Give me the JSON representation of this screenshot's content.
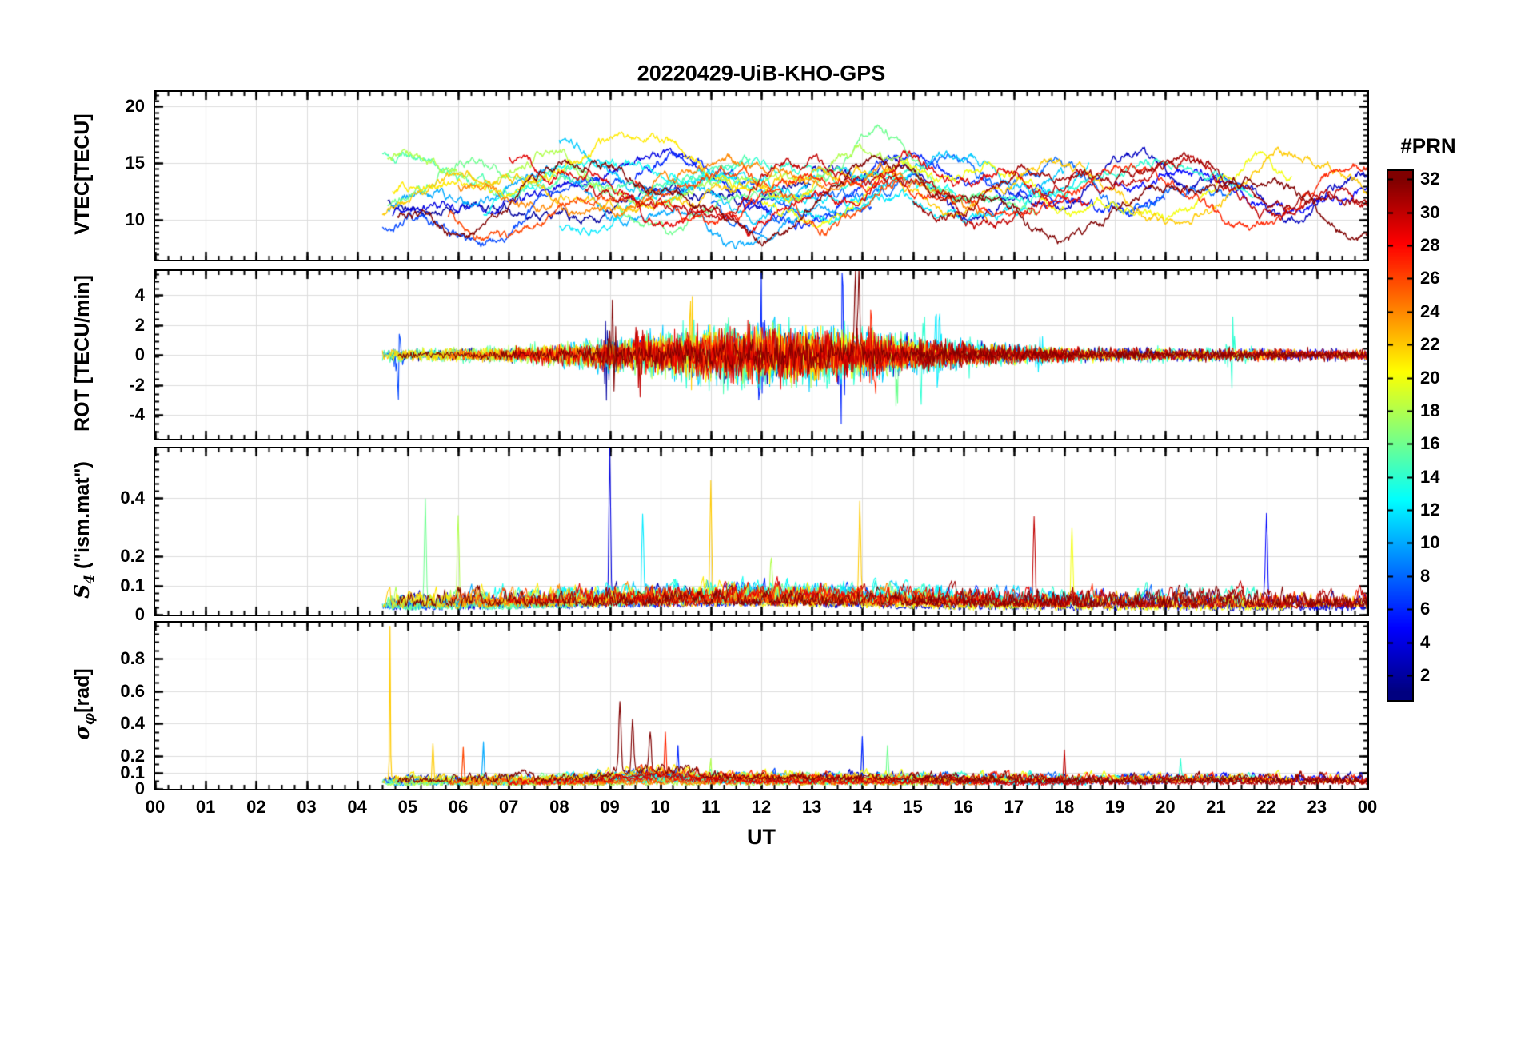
{
  "chart_data": {
    "type": "line",
    "title": "20220429-UiB-KHO-GPS",
    "xlabel": "UT",
    "grid": true,
    "x_axis": {
      "xlim": [
        0,
        24
      ],
      "major_step": 1,
      "minor_step": 0.25,
      "tick_labels": [
        "00",
        "01",
        "02",
        "03",
        "04",
        "05",
        "06",
        "07",
        "08",
        "09",
        "10",
        "11",
        "12",
        "13",
        "14",
        "15",
        "16",
        "17",
        "18",
        "19",
        "20",
        "21",
        "22",
        "23",
        "00"
      ]
    },
    "panels": [
      {
        "name": "vtec",
        "ylabel_pre": "VTEC[TECU]",
        "ylabel_sub": "",
        "ylabel_post": "",
        "ylim": [
          6.5,
          21.3
        ],
        "yticks": [
          10,
          15,
          20
        ],
        "ytick_labels": [
          "10",
          "15",
          "20"
        ],
        "minor_step": 0.5
      },
      {
        "name": "rot",
        "ylabel_pre": "ROT [TECU/min]",
        "ylabel_sub": "",
        "ylabel_post": "",
        "ylim": [
          -5.6,
          5.6
        ],
        "yticks": [
          -4,
          -2,
          0,
          2,
          4
        ],
        "ytick_labels": [
          "-4",
          "-2",
          "0",
          "2",
          "4"
        ],
        "minor_step": 0.5
      },
      {
        "name": "s4",
        "ylabel_pre": "S",
        "ylabel_sub": "4",
        "ylabel_post": " (\"ism.mat\")",
        "ylim": [
          0,
          0.57
        ],
        "yticks": [
          0,
          0.1,
          0.2,
          0.4
        ],
        "ytick_labels": [
          "0",
          "0.1",
          "0.2",
          "0.4"
        ],
        "minor_step": 0.025
      },
      {
        "name": "sigma_phi",
        "ylabel_pre": "σ",
        "ylabel_sub": "φ",
        "ylabel_post": "[rad]",
        "ylim": [
          0,
          1.02
        ],
        "yticks": [
          0,
          0.1,
          0.2,
          0.4,
          0.6,
          0.8
        ],
        "ytick_labels": [
          "0",
          "0.1",
          "0.2",
          "0.4",
          "0.6",
          "0.8"
        ],
        "minor_step": 0.05
      }
    ],
    "colorbar": {
      "title": "#PRN",
      "colormap": "jet",
      "vmin": 0.5,
      "vmax": 32.5,
      "ticks": [
        2,
        4,
        6,
        8,
        10,
        12,
        14,
        16,
        18,
        20,
        22,
        24,
        26,
        28,
        30,
        32
      ]
    },
    "series": [
      {
        "prn": 2,
        "window": [
          4.6,
          13.0
        ],
        "vtec_base": 11.2,
        "seed": 11
      },
      {
        "prn": 3,
        "window": [
          13.0,
          24.0
        ],
        "vtec_base": 12.8,
        "seed": 23
      },
      {
        "prn": 4,
        "window": [
          4.7,
          12.2
        ],
        "vtec_base": 12.2,
        "seed": 37
      },
      {
        "prn": 5,
        "window": [
          19.0,
          24.0
        ],
        "vtec_base": 13.0,
        "seed": 41
      },
      {
        "prn": 6,
        "window": [
          9.5,
          20.0
        ],
        "vtec_base": 12.3,
        "seed": 53
      },
      {
        "prn": 7,
        "window": [
          4.5,
          14.2
        ],
        "vtec_base": 10.8,
        "seed": 67
      },
      {
        "prn": 8,
        "window": [
          11.0,
          21.5
        ],
        "vtec_base": 12.4,
        "seed": 71
      },
      {
        "prn": 10,
        "window": [
          4.6,
          13.5
        ],
        "vtec_base": 10.6,
        "seed": 83
      },
      {
        "prn": 11,
        "window": [
          8.0,
          18.0
        ],
        "vtec_base": 13.2,
        "seed": 97
      },
      {
        "prn": 12,
        "window": [
          8.0,
          18.5
        ],
        "vtec_base": 12.0,
        "seed": 103
      },
      {
        "prn": 13,
        "window": [
          6.5,
          16.0
        ],
        "vtec_base": 12.1,
        "seed": 113
      },
      {
        "prn": 14,
        "window": [
          10.0,
          21.8
        ],
        "vtec_base": 12.6,
        "seed": 127
      },
      {
        "prn": 15,
        "window": [
          4.5,
          11.8
        ],
        "vtec_base": 13.4,
        "seed": 131
      },
      {
        "prn": 16,
        "window": [
          4.6,
          17.5
        ],
        "vtec_base": 12.0,
        "seed": 139
      },
      {
        "prn": 18,
        "window": [
          4.6,
          15.5
        ],
        "vtec_base": 13.0,
        "seed": 149
      },
      {
        "prn": 20,
        "window": [
          12.0,
          22.5
        ],
        "vtec_base": 12.4,
        "seed": 151
      },
      {
        "prn": 21,
        "window": [
          4.7,
          13.2
        ],
        "vtec_base": 14.0,
        "seed": 163
      },
      {
        "prn": 22,
        "window": [
          4.5,
          24.0
        ],
        "vtec_base": 12.2,
        "seed": 173
      },
      {
        "prn": 24,
        "window": [
          6.0,
          16.5
        ],
        "vtec_base": 12.6,
        "seed": 179
      },
      {
        "prn": 26,
        "window": [
          5.8,
          14.8
        ],
        "vtec_base": 11.4,
        "seed": 181
      },
      {
        "prn": 27,
        "window": [
          9.5,
          24.0
        ],
        "vtec_base": 12.1,
        "seed": 191
      },
      {
        "prn": 29,
        "window": [
          7.0,
          18.5
        ],
        "vtec_base": 12.0,
        "seed": 193
      },
      {
        "prn": 30,
        "window": [
          8.5,
          24.0
        ],
        "vtec_base": 12.5,
        "seed": 197
      },
      {
        "prn": 31,
        "window": [
          15.0,
          24.0
        ],
        "vtec_base": 12.6,
        "seed": 199
      },
      {
        "prn": 32,
        "window": [
          4.8,
          24.0
        ],
        "vtec_base": 11.2,
        "seed": 211
      }
    ],
    "vtec_events": [
      {
        "t": 8.0,
        "w": 0.9
      },
      {
        "t": 9.3,
        "w": 1.0
      },
      {
        "t": 14.6,
        "w": 0.9
      },
      {
        "t": 21.6,
        "w": 1.2
      }
    ],
    "rot_bursts": [
      {
        "t": 4.8,
        "amp": 3.6,
        "prn": 7
      },
      {
        "t": 8.95,
        "amp": 4.2,
        "prn": 2
      },
      {
        "t": 9.05,
        "amp": 4.5,
        "prn": 32
      },
      {
        "t": 9.6,
        "amp": 4.0,
        "prn": 30
      },
      {
        "t": 10.6,
        "amp": 4.4,
        "prn": 22
      },
      {
        "t": 10.9,
        "amp": 3.8,
        "prn": 21
      },
      {
        "t": 12.0,
        "amp": 4.0,
        "prn": 6
      },
      {
        "t": 13.6,
        "amp": 5.0,
        "prn": 6
      },
      {
        "t": 13.9,
        "amp": 7.0,
        "prn": 32
      },
      {
        "t": 14.2,
        "amp": 5.5,
        "prn": 27
      },
      {
        "t": 14.7,
        "amp": 4.2,
        "prn": 16
      },
      {
        "t": 15.2,
        "amp": 4.3,
        "prn": 14
      },
      {
        "t": 15.5,
        "amp": 4.0,
        "prn": 12
      },
      {
        "t": 16.1,
        "amp": 3.5,
        "prn": 14
      },
      {
        "t": 17.5,
        "amp": 3.0,
        "prn": 12
      },
      {
        "t": 21.3,
        "amp": 2.8,
        "prn": 14
      }
    ],
    "s4_spikes": [
      {
        "t": 5.35,
        "amp": 0.37,
        "prn": 16
      },
      {
        "t": 6.0,
        "amp": 0.31,
        "prn": 18
      },
      {
        "t": 9.0,
        "amp": 0.52,
        "prn": 4
      },
      {
        "t": 9.65,
        "amp": 0.28,
        "prn": 12
      },
      {
        "t": 11.0,
        "amp": 0.4,
        "prn": 22
      },
      {
        "t": 12.2,
        "amp": 0.12,
        "prn": 18
      },
      {
        "t": 13.95,
        "amp": 0.33,
        "prn": 22
      },
      {
        "t": 17.4,
        "amp": 0.31,
        "prn": 30
      },
      {
        "t": 18.15,
        "amp": 0.28,
        "prn": 20
      },
      {
        "t": 22.0,
        "amp": 0.25,
        "prn": 5
      }
    ],
    "sigma_spikes": [
      {
        "t": 4.65,
        "amp": 0.95,
        "prn": 22,
        "sig": 0.012
      },
      {
        "t": 5.5,
        "amp": 0.24,
        "prn": 22,
        "sig": 0.02
      },
      {
        "t": 6.1,
        "amp": 0.2,
        "prn": 26,
        "sig": 0.02
      },
      {
        "t": 6.5,
        "amp": 0.22,
        "prn": 10,
        "sig": 0.02
      },
      {
        "t": 9.2,
        "amp": 0.42,
        "prn": 32,
        "sig": 0.03
      },
      {
        "t": 9.45,
        "amp": 0.33,
        "prn": 32,
        "sig": 0.03
      },
      {
        "t": 9.8,
        "amp": 0.25,
        "prn": 32,
        "sig": 0.03
      },
      {
        "t": 10.1,
        "amp": 0.26,
        "prn": 27,
        "sig": 0.02
      },
      {
        "t": 10.35,
        "amp": 0.2,
        "prn": 6,
        "sig": 0.02
      },
      {
        "t": 11.0,
        "amp": 0.14,
        "prn": 18,
        "sig": 0.02
      },
      {
        "t": 14.0,
        "amp": 0.28,
        "prn": 6,
        "sig": 0.02
      },
      {
        "t": 14.5,
        "amp": 0.22,
        "prn": 16,
        "sig": 0.02
      },
      {
        "t": 18.0,
        "amp": 0.21,
        "prn": 30,
        "sig": 0.02
      },
      {
        "t": 20.3,
        "amp": 0.11,
        "prn": 14,
        "sig": 0.02
      }
    ]
  }
}
